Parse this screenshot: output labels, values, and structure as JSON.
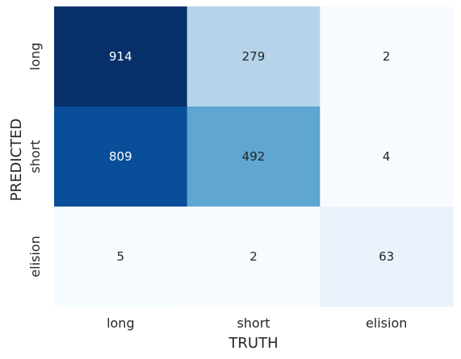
{
  "chart_data": {
    "type": "heatmap",
    "title": "",
    "xlabel": "TRUTH",
    "ylabel": "PREDICTED",
    "x_categories": [
      "long",
      "short",
      "elision"
    ],
    "y_categories": [
      "long",
      "short",
      "elision"
    ],
    "values": [
      [
        914,
        279,
        2
      ],
      [
        809,
        492,
        4
      ],
      [
        5,
        2,
        63
      ]
    ],
    "colormap": "Blues",
    "color_range": [
      2,
      914
    ],
    "annotations": true,
    "colorbar": false,
    "grid": false
  },
  "colors": {
    "background": "#ffffff",
    "label_text": "#262626",
    "cell_text_light": "#ffffff",
    "cell_text_dark": "#262626"
  }
}
